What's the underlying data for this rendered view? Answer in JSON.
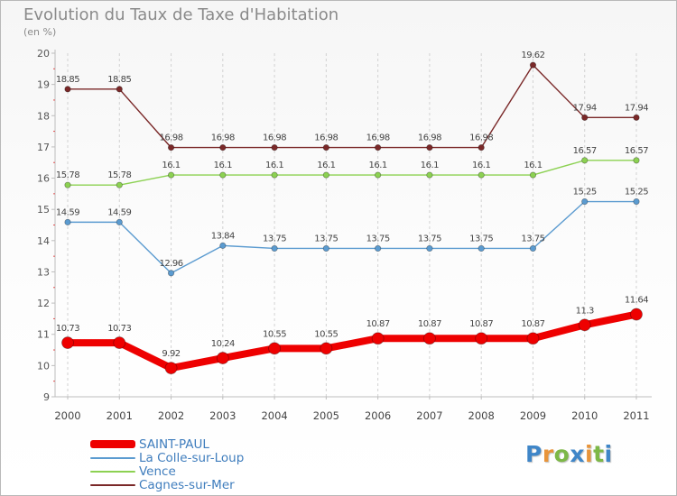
{
  "title": "Evolution du Taux de Taxe d'Habitation",
  "unit": "(en %)",
  "logo": {
    "text": "Proxiti",
    "colors": [
      "#3f86c8",
      "#e8943a",
      "#7db847",
      "#3f86c8",
      "#e8943a",
      "#7db847",
      "#3f86c8"
    ]
  },
  "chart_data": {
    "type": "line",
    "title": "Evolution du Taux de Taxe d'Habitation",
    "ylabel": "(en %)",
    "xlabel": "",
    "x": [
      "2000",
      "2001",
      "2002",
      "2003",
      "2004",
      "2005",
      "2006",
      "2007",
      "2008",
      "2009",
      "2010",
      "2011"
    ],
    "ylim": [
      9,
      20
    ],
    "yticks": [
      "9",
      "10",
      "11",
      "12",
      "13",
      "14",
      "15",
      "16",
      "17",
      "18",
      "19",
      "20"
    ],
    "grid": "vertical dashed",
    "legend_position": "bottom-left",
    "series": [
      {
        "name": "Cagnes-sur-Mer",
        "color": "#7a2828",
        "values": [
          18.85,
          18.85,
          16.98,
          16.98,
          16.98,
          16.98,
          16.98,
          16.98,
          16.98,
          19.62,
          17.94,
          17.94
        ],
        "labels": [
          "18.85",
          "18.85",
          "16.98",
          "16.98",
          "16.98",
          "16.98",
          "16.98",
          "16.98",
          "16.98",
          "19.62",
          "17.94",
          "17.94"
        ]
      },
      {
        "name": "Vence",
        "color": "#8cd152",
        "values": [
          15.78,
          15.78,
          16.1,
          16.1,
          16.1,
          16.1,
          16.1,
          16.1,
          16.1,
          16.1,
          16.57,
          16.57
        ],
        "labels": [
          "15.78",
          "15.78",
          "16.1",
          "16.1",
          "16.1",
          "16.1",
          "16.1",
          "16.1",
          "16.1",
          "16.1",
          "16.57",
          "16.57"
        ]
      },
      {
        "name": "La Colle-sur-Loup",
        "color": "#5b9bd0",
        "values": [
          14.59,
          14.59,
          12.96,
          13.84,
          13.75,
          13.75,
          13.75,
          13.75,
          13.75,
          13.75,
          15.25,
          15.25
        ],
        "labels": [
          "14.59",
          "14.59",
          "12.96",
          "13.84",
          "13.75",
          "13.75",
          "13.75",
          "13.75",
          "13.75",
          "13.75",
          "15.25",
          "15.25"
        ]
      },
      {
        "name": "SAINT-PAUL",
        "color": "#ee0000",
        "values": [
          10.73,
          10.73,
          9.92,
          10.24,
          10.55,
          10.55,
          10.87,
          10.87,
          10.87,
          10.87,
          11.3,
          11.64
        ],
        "labels": [
          "10.73",
          "10.73",
          "9.92",
          "10.24",
          "10.55",
          "10.55",
          "10.87",
          "10.87",
          "10.87",
          "10.87",
          "11.3",
          "11.64"
        ]
      }
    ],
    "legend": [
      "SAINT-PAUL",
      "La Colle-sur-Loup",
      "Vence",
      "Cagnes-sur-Mer"
    ]
  }
}
